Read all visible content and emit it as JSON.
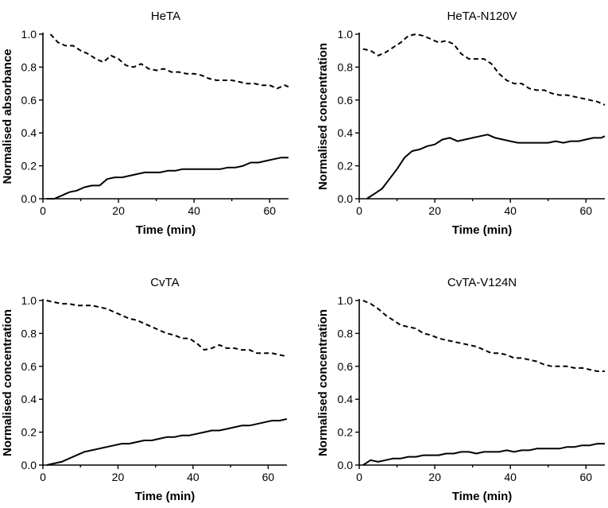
{
  "chart_data": [
    {
      "type": "line",
      "title": "HeTA",
      "xlabel": "Time (min)",
      "ylabel": "Normalised absorbance",
      "xlim": [
        0,
        65
      ],
      "ylim": [
        0,
        1.0
      ],
      "xticks": [
        "0",
        "20",
        "40",
        "60"
      ],
      "yticks": [
        "0.0",
        "0.2",
        "0.4",
        "0.6",
        "0.8",
        "1.0"
      ],
      "series": [
        {
          "name": "dashed",
          "style": "dashed",
          "x": [
            2,
            4,
            6,
            8,
            10,
            12,
            14,
            16,
            18,
            20,
            22,
            24,
            26,
            28,
            30,
            32,
            34,
            36,
            38,
            40,
            42,
            44,
            46,
            48,
            50,
            52,
            54,
            56,
            58,
            60,
            62,
            64,
            65
          ],
          "values": [
            1.0,
            0.95,
            0.93,
            0.93,
            0.9,
            0.88,
            0.85,
            0.83,
            0.87,
            0.85,
            0.81,
            0.8,
            0.82,
            0.79,
            0.78,
            0.79,
            0.77,
            0.77,
            0.76,
            0.76,
            0.75,
            0.73,
            0.72,
            0.72,
            0.72,
            0.71,
            0.7,
            0.7,
            0.69,
            0.69,
            0.67,
            0.69,
            0.68
          ]
        },
        {
          "name": "solid",
          "style": "solid",
          "x": [
            1,
            3,
            5,
            7,
            9,
            11,
            13,
            15,
            17,
            19,
            21,
            23,
            25,
            27,
            29,
            31,
            33,
            35,
            37,
            39,
            41,
            43,
            45,
            47,
            49,
            51,
            53,
            55,
            57,
            59,
            61,
            63,
            65
          ],
          "values": [
            0.0,
            0.0,
            0.02,
            0.04,
            0.05,
            0.07,
            0.08,
            0.08,
            0.12,
            0.13,
            0.13,
            0.14,
            0.15,
            0.16,
            0.16,
            0.16,
            0.17,
            0.17,
            0.18,
            0.18,
            0.18,
            0.18,
            0.18,
            0.18,
            0.19,
            0.19,
            0.2,
            0.22,
            0.22,
            0.23,
            0.24,
            0.25,
            0.25
          ]
        }
      ]
    },
    {
      "type": "line",
      "title": "HeTA-N120V",
      "xlabel": "Time (min)",
      "ylabel": "Normalised concentration",
      "xlim": [
        0,
        65
      ],
      "ylim": [
        0,
        1.0
      ],
      "xticks": [
        "0",
        "20",
        "40",
        "60"
      ],
      "yticks": [
        "0.0",
        "0.2",
        "0.4",
        "0.6",
        "0.8",
        "1.0"
      ],
      "series": [
        {
          "name": "dashed",
          "style": "dashed",
          "x": [
            1,
            3,
            5,
            7,
            9,
            11,
            13,
            15,
            17,
            19,
            21,
            23,
            25,
            27,
            29,
            31,
            33,
            35,
            37,
            39,
            41,
            43,
            45,
            47,
            49,
            51,
            53,
            55,
            57,
            59,
            61,
            63,
            65
          ],
          "values": [
            0.91,
            0.9,
            0.87,
            0.89,
            0.92,
            0.95,
            0.99,
            1.0,
            0.99,
            0.97,
            0.95,
            0.96,
            0.94,
            0.88,
            0.85,
            0.85,
            0.85,
            0.82,
            0.76,
            0.72,
            0.7,
            0.7,
            0.67,
            0.66,
            0.66,
            0.64,
            0.63,
            0.63,
            0.62,
            0.61,
            0.6,
            0.59,
            0.57
          ]
        },
        {
          "name": "solid",
          "style": "solid",
          "x": [
            2,
            4,
            6,
            8,
            10,
            12,
            14,
            16,
            18,
            20,
            22,
            24,
            26,
            28,
            30,
            32,
            34,
            36,
            38,
            40,
            42,
            44,
            46,
            48,
            50,
            52,
            54,
            56,
            58,
            60,
            62,
            64,
            65
          ],
          "values": [
            0.0,
            0.03,
            0.06,
            0.12,
            0.18,
            0.25,
            0.29,
            0.3,
            0.32,
            0.33,
            0.36,
            0.37,
            0.35,
            0.36,
            0.37,
            0.38,
            0.39,
            0.37,
            0.36,
            0.35,
            0.34,
            0.34,
            0.34,
            0.34,
            0.34,
            0.35,
            0.34,
            0.35,
            0.35,
            0.36,
            0.37,
            0.37,
            0.38
          ]
        }
      ]
    },
    {
      "type": "line",
      "title": "CvTA",
      "xlabel": "Time (min)",
      "ylabel": "Normalised concentration",
      "xlim": [
        0,
        65
      ],
      "ylim": [
        0,
        1.0
      ],
      "xticks": [
        "0",
        "20",
        "40",
        "60"
      ],
      "yticks": [
        "0.0",
        "0.2",
        "0.4",
        "0.6",
        "0.8",
        "1.0"
      ],
      "series": [
        {
          "name": "dashed",
          "style": "dashed",
          "x": [
            1,
            3,
            5,
            7,
            9,
            11,
            13,
            15,
            17,
            19,
            21,
            23,
            25,
            27,
            29,
            31,
            33,
            35,
            37,
            39,
            41,
            43,
            45,
            47,
            49,
            51,
            53,
            55,
            57,
            59,
            61,
            63,
            65
          ],
          "values": [
            1.0,
            0.99,
            0.98,
            0.98,
            0.97,
            0.97,
            0.97,
            0.96,
            0.95,
            0.93,
            0.91,
            0.89,
            0.88,
            0.86,
            0.84,
            0.82,
            0.8,
            0.79,
            0.77,
            0.77,
            0.74,
            0.7,
            0.71,
            0.73,
            0.71,
            0.71,
            0.7,
            0.7,
            0.68,
            0.68,
            0.68,
            0.67,
            0.66
          ]
        },
        {
          "name": "solid",
          "style": "solid",
          "x": [
            1,
            3,
            5,
            7,
            9,
            11,
            13,
            15,
            17,
            19,
            21,
            23,
            25,
            27,
            29,
            31,
            33,
            35,
            37,
            39,
            41,
            43,
            45,
            47,
            49,
            51,
            53,
            55,
            57,
            59,
            61,
            63,
            65
          ],
          "values": [
            0.0,
            0.01,
            0.02,
            0.04,
            0.06,
            0.08,
            0.09,
            0.1,
            0.11,
            0.12,
            0.13,
            0.13,
            0.14,
            0.15,
            0.15,
            0.16,
            0.17,
            0.17,
            0.18,
            0.18,
            0.19,
            0.2,
            0.21,
            0.21,
            0.22,
            0.23,
            0.24,
            0.24,
            0.25,
            0.26,
            0.27,
            0.27,
            0.28
          ]
        }
      ]
    },
    {
      "type": "line",
      "title": "CvTA-V124N",
      "xlabel": "Time (min)",
      "ylabel": "Normalised concentration",
      "xlim": [
        0,
        65
      ],
      "ylim": [
        0,
        1.0
      ],
      "xticks": [
        "0",
        "20",
        "40",
        "60"
      ],
      "yticks": [
        "0.0",
        "0.2",
        "0.4",
        "0.6",
        "0.8",
        "1.0"
      ],
      "series": [
        {
          "name": "dashed",
          "style": "dashed",
          "x": [
            1,
            3,
            5,
            7,
            9,
            11,
            13,
            15,
            17,
            19,
            21,
            23,
            25,
            27,
            29,
            31,
            33,
            35,
            37,
            39,
            41,
            43,
            45,
            47,
            49,
            51,
            53,
            55,
            57,
            59,
            61,
            63,
            65
          ],
          "values": [
            1.0,
            0.98,
            0.95,
            0.91,
            0.88,
            0.85,
            0.84,
            0.83,
            0.8,
            0.79,
            0.77,
            0.76,
            0.75,
            0.74,
            0.73,
            0.72,
            0.7,
            0.68,
            0.68,
            0.67,
            0.65,
            0.65,
            0.64,
            0.63,
            0.61,
            0.6,
            0.6,
            0.6,
            0.59,
            0.59,
            0.58,
            0.57,
            0.57
          ]
        },
        {
          "name": "solid",
          "style": "solid",
          "x": [
            1,
            3,
            5,
            7,
            9,
            11,
            13,
            15,
            17,
            19,
            21,
            23,
            25,
            27,
            29,
            31,
            33,
            35,
            37,
            39,
            41,
            43,
            45,
            47,
            49,
            51,
            53,
            55,
            57,
            59,
            61,
            63,
            65
          ],
          "values": [
            0.0,
            0.03,
            0.02,
            0.03,
            0.04,
            0.04,
            0.05,
            0.05,
            0.06,
            0.06,
            0.06,
            0.07,
            0.07,
            0.08,
            0.08,
            0.07,
            0.08,
            0.08,
            0.08,
            0.09,
            0.08,
            0.09,
            0.09,
            0.1,
            0.1,
            0.1,
            0.1,
            0.11,
            0.11,
            0.12,
            0.12,
            0.13,
            0.13
          ]
        }
      ]
    }
  ]
}
